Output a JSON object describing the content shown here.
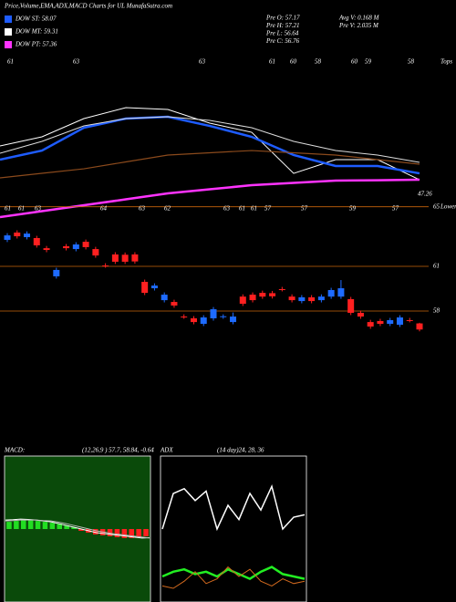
{
  "header": {
    "title": "Price,Volume,EMA,ADX,MACD Charts for UL  MunafaSutra.com",
    "dow": [
      {
        "text": "DOW ST: 58.07",
        "color": "#1e5cff"
      },
      {
        "text": "DOW MT: 59.31",
        "color": "#ffffff"
      },
      {
        "text": "DOW PT: 57.36",
        "color": "#ff33ff"
      }
    ],
    "stats": [
      "Pre  O: 57.17",
      "Pre  H: 57.21",
      "Pre  L: 56.64",
      "Pre  C: 56.76",
      "Avg V: 0.168 M",
      "Pre  V: 2.035 M"
    ]
  },
  "chart_data": [
    {
      "type": "line",
      "categories": [
        null,
        null,
        null,
        null,
        null,
        null,
        null,
        null,
        null,
        null,
        null
      ],
      "ylim": [
        42,
        70
      ],
      "series": [
        {
          "color": "#ffffff",
          "width": 1,
          "values": [
            54.44,
            56.0,
            59.11,
            60.98,
            60.66,
            58.33,
            56.77,
            49.77,
            52.11,
            52.11,
            48.68
          ]
        },
        {
          "color": "#1e5cff",
          "width": 2.5,
          "values": [
            52.11,
            53.66,
            57.55,
            59.11,
            59.42,
            57.86,
            56.0,
            52.89,
            51.02,
            51.02,
            49.77
          ]
        },
        {
          "color": "#dddddd",
          "width": 1,
          "values": [
            53.19,
            55.22,
            57.86,
            59.11,
            59.42,
            58.8,
            57.55,
            55.22,
            53.66,
            52.89,
            51.64
          ]
        },
        {
          "color": "#8b4a1c",
          "width": 1.2,
          "values": [
            49.0,
            49.78,
            50.55,
            51.72,
            52.89,
            53.28,
            53.66,
            53.28,
            52.89,
            52.11,
            51.33
          ]
        },
        {
          "color": "#ff33ff",
          "width": 2.5,
          "values": [
            42.3,
            43.32,
            44.33,
            45.34,
            46.35,
            47.05,
            47.75,
            48.14,
            48.53,
            48.6,
            48.68
          ]
        }
      ],
      "end_label": "47.26",
      "annotations": [
        "61",
        "63",
        "63",
        "61",
        "60",
        "58",
        "60",
        "59",
        "58"
      ],
      "annotation_title": "Tops"
    },
    {
      "type": "candlestick",
      "categories": [
        null,
        null,
        null,
        null,
        null,
        null,
        null,
        null,
        null,
        null,
        null,
        null,
        null,
        null,
        null,
        null,
        null,
        null,
        null,
        null,
        null,
        null,
        null,
        null,
        null,
        null,
        null,
        null,
        null,
        null,
        null,
        null,
        null,
        null,
        null,
        null,
        null,
        null,
        null,
        null,
        null,
        null,
        null
      ],
      "open": [
        62.78,
        63.27,
        62.96,
        62.9,
        62.22,
        60.33,
        62.35,
        62.16,
        62.65,
        62.16,
        61.06,
        61.8,
        61.78,
        61.8,
        59.96,
        59.53,
        58.73,
        58.61,
        57.63,
        57.51,
        57.14,
        57.51,
        57.63,
        57.26,
        58.97,
        59.1,
        59.22,
        59.2,
        59.47,
        58.97,
        58.67,
        58.92,
        58.73,
        58.97,
        58.97,
        58.8,
        57.88,
        57.26,
        57.33,
        57.14,
        57.08,
        57.39,
        57.17
      ],
      "high": [
        63.23,
        63.42,
        63.35,
        63.05,
        62.37,
        60.91,
        62.5,
        62.62,
        62.8,
        62.31,
        61.21,
        61.95,
        61.93,
        61.95,
        60.11,
        59.86,
        59.25,
        58.76,
        57.78,
        57.66,
        57.72,
        58.27,
        57.78,
        57.9,
        59.12,
        59.25,
        59.37,
        59.35,
        59.62,
        59.12,
        59.07,
        59.07,
        59.12,
        59.56,
        60.08,
        58.95,
        58.03,
        57.41,
        57.48,
        57.54,
        57.72,
        57.54,
        57.21
      ],
      "low": [
        62.63,
        62.87,
        62.81,
        62.26,
        61.95,
        60.18,
        62.07,
        62.01,
        62.14,
        61.58,
        60.91,
        61.16,
        61.16,
        61.18,
        59.07,
        59.38,
        58.58,
        58.22,
        57.48,
        57.11,
        56.99,
        57.36,
        57.48,
        57.11,
        58.34,
        58.58,
        58.82,
        58.84,
        59.32,
        58.58,
        58.52,
        58.52,
        58.58,
        58.82,
        58.82,
        57.73,
        57.48,
        56.81,
        56.99,
        56.99,
        56.93,
        57.24,
        56.64
      ],
      "close": [
        63.08,
        63.02,
        63.2,
        62.41,
        62.1,
        60.76,
        62.22,
        62.47,
        62.29,
        61.73,
        61.04,
        61.31,
        61.31,
        61.33,
        59.22,
        59.71,
        59.1,
        58.37,
        57.61,
        57.26,
        57.57,
        58.12,
        57.65,
        57.63,
        58.49,
        58.73,
        58.97,
        58.99,
        59.45,
        58.73,
        58.92,
        58.67,
        58.97,
        59.41,
        59.53,
        57.88,
        57.63,
        56.96,
        57.14,
        57.39,
        57.57,
        57.37,
        56.76
      ],
      "up_color": "#1e6bff",
      "down_color": "#ff2020",
      "line_color": "#c8640a",
      "ylim": [
        55,
        65
      ],
      "yticks": [
        65,
        61,
        58
      ],
      "ytick_note": "Lower",
      "annotations": [
        "61",
        "61",
        "63",
        "64",
        "63",
        "62",
        "63",
        "61",
        "61",
        "57",
        "57",
        "59",
        "57"
      ]
    },
    {
      "type": "macd",
      "title": "MACD:",
      "subtitle": "(12,26,9 ) 57.7, 58.84, -0.64",
      "background": "#0a4a0a",
      "categories": [
        null,
        null,
        null,
        null,
        null,
        null,
        null,
        null,
        null,
        null,
        null,
        null,
        null,
        null,
        null,
        null,
        null,
        null,
        null,
        null
      ],
      "ylim": [
        -4,
        4
      ],
      "histogram": [
        0.4,
        0.45,
        0.5,
        0.5,
        0.45,
        0.4,
        0.35,
        0.3,
        0.2,
        0.1,
        -0.1,
        -0.2,
        -0.3,
        -0.35,
        -0.4,
        -0.45,
        -0.5,
        -0.5,
        -0.45,
        -0.4
      ],
      "up_color": "#22dd22",
      "down_color": "#ff2020",
      "series": [
        {
          "color": "#ffffff",
          "values": [
            0.5,
            0.52,
            0.55,
            0.53,
            0.5,
            0.45,
            0.4,
            0.3,
            0.2,
            0.1,
            0,
            -0.1,
            -0.2,
            -0.25,
            -0.3,
            -0.35,
            -0.4,
            -0.45,
            -0.5,
            -0.48
          ]
        },
        {
          "color": "#bbbbbb",
          "values": [
            0.45,
            0.47,
            0.5,
            0.5,
            0.5,
            0.47,
            0.45,
            0.38,
            0.3,
            0.2,
            0.1,
            0,
            -0.1,
            -0.17,
            -0.25,
            -0.3,
            -0.35,
            -0.4,
            -0.45,
            -0.5
          ]
        }
      ]
    },
    {
      "type": "adx",
      "title": "ADX",
      "subtitle": "(14 day)24, 28, 36",
      "categories": [
        null,
        null,
        null,
        null,
        null,
        null,
        null,
        null,
        null,
        null,
        null,
        null,
        null,
        null
      ],
      "ylim": [
        0,
        60
      ],
      "series": [
        {
          "color": "#ffffff",
          "width": 1.5,
          "values": [
            30,
            45,
            47,
            42,
            46,
            30,
            40,
            34,
            45,
            38,
            48,
            30,
            35,
            36
          ]
        },
        {
          "color": "#22ee22",
          "width": 2.5,
          "values": [
            10,
            12,
            13,
            11,
            12,
            10,
            13,
            11,
            9,
            12,
            14,
            11,
            10,
            9
          ]
        },
        {
          "color": "#d2691e",
          "width": 1,
          "values": [
            6,
            5,
            8,
            12,
            7,
            9,
            14,
            10,
            13,
            8,
            6,
            9,
            7,
            8
          ]
        }
      ]
    }
  ]
}
